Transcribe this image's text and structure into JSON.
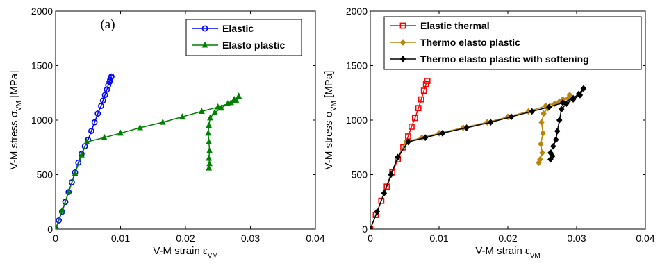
{
  "chart_data": [
    {
      "type": "line",
      "panel_label": "(a)",
      "xlabel": "V-M strain ε",
      "xlabel_sub": "VM",
      "ylabel": "V-M stress σ",
      "ylabel_sub": "VM",
      "ylabel_unit": " [MPa]",
      "xlim": [
        0,
        0.04
      ],
      "ylim": [
        0,
        2000
      ],
      "xticks": [
        "0",
        "0.01",
        "0.02",
        "0.03",
        "0.04"
      ],
      "yticks": [
        "0",
        "500",
        "1000",
        "1500",
        "2000"
      ],
      "legend": "top-right",
      "series": [
        {
          "name": "Elastic",
          "color": "#0000ff",
          "marker": "circle",
          "x": [
            0,
            0.0005,
            0.001,
            0.0015,
            0.002,
            0.0025,
            0.003,
            0.0035,
            0.004,
            0.0045,
            0.005,
            0.0055,
            0.006,
            0.0065,
            0.007,
            0.0073,
            0.0076,
            0.0079,
            0.0081,
            0.0083,
            0.0084,
            0.0085,
            0.0086
          ],
          "y": [
            0,
            80,
            160,
            250,
            340,
            430,
            520,
            610,
            690,
            760,
            820,
            900,
            980,
            1060,
            1130,
            1180,
            1230,
            1280,
            1320,
            1350,
            1370,
            1390,
            1400
          ]
        },
        {
          "name": "Elasto plastic",
          "color": "#008000",
          "marker": "triangle",
          "x": [
            0,
            0.001,
            0.002,
            0.003,
            0.004,
            0.0048,
            0.0075,
            0.01,
            0.013,
            0.0165,
            0.0195,
            0.0225,
            0.025,
            0.027,
            0.0278,
            0.0282,
            0.0275,
            0.0265,
            0.0255,
            0.0245,
            0.0238,
            0.0236,
            0.0235,
            0.0236,
            0.0237,
            0.0236,
            0.0237,
            0.0236
          ],
          "y": [
            0,
            170,
            340,
            510,
            680,
            800,
            840,
            880,
            930,
            980,
            1030,
            1080,
            1120,
            1160,
            1180,
            1220,
            1190,
            1150,
            1110,
            1070,
            1020,
            950,
            880,
            800,
            720,
            650,
            600,
            560
          ]
        }
      ]
    },
    {
      "type": "line",
      "panel_label": "(b)",
      "xlabel": "V-M strain ε",
      "xlabel_sub": "VM",
      "ylabel": "V-M stress σ",
      "ylabel_sub": "VM",
      "ylabel_unit": " [MPa]",
      "xlim": [
        0,
        0.04
      ],
      "ylim": [
        0,
        2000
      ],
      "xticks": [
        "0",
        "0.01",
        "0.02",
        "0.03",
        "0.04"
      ],
      "yticks": [
        "0",
        "500",
        "1000",
        "1500",
        "2000"
      ],
      "legend": "top-left",
      "series": [
        {
          "name": "Elastic thermal",
          "color": "#ff0000",
          "marker": "square",
          "x": [
            0,
            0.0008,
            0.0016,
            0.0024,
            0.0032,
            0.004,
            0.0048,
            0.0055,
            0.006,
            0.0065,
            0.007,
            0.0074,
            0.0078,
            0.0081,
            0.0083
          ],
          "y": [
            0,
            130,
            260,
            390,
            520,
            640,
            750,
            850,
            940,
            1020,
            1110,
            1190,
            1270,
            1330,
            1360
          ]
        },
        {
          "name": "Thermo elasto plastic",
          "color": "#b8860b",
          "marker": "diamond",
          "x": [
            0,
            0.001,
            0.002,
            0.003,
            0.004,
            0.0052,
            0.0075,
            0.01,
            0.0135,
            0.017,
            0.02,
            0.023,
            0.0255,
            0.0275,
            0.0288,
            0.029,
            0.028,
            0.0268,
            0.0258,
            0.0252,
            0.0249,
            0.0251,
            0.0248,
            0.025,
            0.0247,
            0.0245
          ],
          "y": [
            0,
            160,
            330,
            500,
            660,
            800,
            840,
            880,
            930,
            980,
            1030,
            1080,
            1130,
            1170,
            1200,
            1230,
            1190,
            1150,
            1110,
            1060,
            980,
            880,
            780,
            700,
            640,
            610
          ]
        },
        {
          "name": "Thermo elasto plastic with softening",
          "color": "#000000",
          "marker": "diamond",
          "x": [
            0,
            0.001,
            0.002,
            0.003,
            0.004,
            0.0055,
            0.008,
            0.0105,
            0.014,
            0.0175,
            0.0205,
            0.0235,
            0.026,
            0.028,
            0.0295,
            0.0303,
            0.031,
            0.0305,
            0.0295,
            0.0285,
            0.0278,
            0.0275,
            0.0272,
            0.027,
            0.0266,
            0.0262,
            0.0265,
            0.0262
          ],
          "y": [
            0,
            160,
            330,
            500,
            660,
            800,
            840,
            880,
            930,
            980,
            1030,
            1080,
            1120,
            1160,
            1200,
            1240,
            1290,
            1230,
            1190,
            1150,
            1100,
            1000,
            900,
            820,
            760,
            700,
            670,
            640
          ]
        }
      ]
    }
  ]
}
